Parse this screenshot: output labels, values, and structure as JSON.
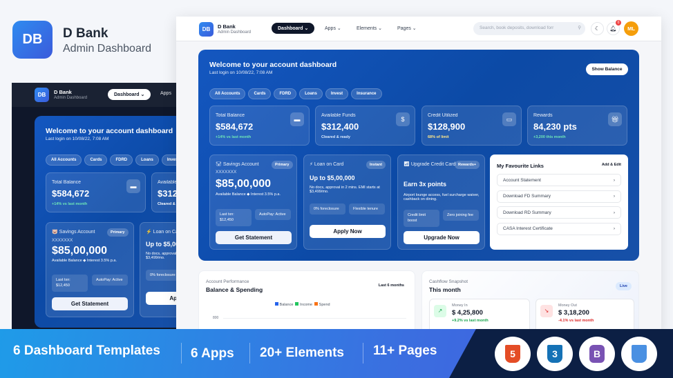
{
  "brand": {
    "logo": "DB",
    "name": "D Bank",
    "subtitle": "Admin Dashboard"
  },
  "header": {
    "logo": "DB",
    "name": "D Bank",
    "subtitle": "Admin Dashboard",
    "nav": [
      "Dashboard",
      "Apps",
      "Elements",
      "Pages"
    ],
    "search_placeholder": "Search, book deposits, download forr",
    "notification_count": "0",
    "avatar": "ML"
  },
  "hero": {
    "title": "Welcome to your account dashboard",
    "subtitle": "Last login on 10/08/22, 7:08 AM",
    "show_balance": "Show Balance",
    "chips": [
      "All Accounts",
      "Cards",
      "FDRD",
      "Loans",
      "Invest",
      "Insurance"
    ]
  },
  "stats": [
    {
      "label": "Total Balance",
      "value": "$584,672",
      "note": "+14% vs last month",
      "icon": "wallet-icon",
      "note_color": "#6ee7b7"
    },
    {
      "label": "Available Funds",
      "value": "$312,400",
      "note": "Cleared & ready",
      "icon": "money-bag-icon",
      "note_color": "#dbeafe"
    },
    {
      "label": "Credit Utilized",
      "value": "$128,900",
      "note": "68% of limit",
      "icon": "credit-card-icon",
      "note_color": "#fde68a"
    },
    {
      "label": "Rewards",
      "value": "84,230 pts",
      "note": "+3,200 this month",
      "icon": "gift-icon",
      "note_color": "#6ee7b7"
    }
  ],
  "savings": {
    "title": "Savings Account",
    "badge": "Primary",
    "number": "XXXXXXX",
    "amount": "$85,00,000",
    "desc": "Available Balance ◆ Interest 3.5% p.a.",
    "box1": "Last txn: $12,450",
    "box2": "AutoPay: Active",
    "button": "Get Statement"
  },
  "loan": {
    "title": "Loan on Card",
    "badge": "Instant",
    "amount": "Up to $5,00,000",
    "desc": "No docs, approval in 2 mins. EMI starts at $3,499/mo.",
    "box1": "0% foreclosure",
    "box2": "Flexible tenure",
    "button": "Apply Now"
  },
  "upgrade": {
    "title": "Upgrade Credit Card",
    "badge": "Rewards+",
    "amount": "Earn 3x points",
    "desc": "Airport lounge access, fuel surcharge waiver, cashback on dining.",
    "box1": "Credit limit boost",
    "box2": "Zero joining fee",
    "button": "Upgrade Now"
  },
  "favourites": {
    "title": "My Favourite Links",
    "action": "Add & Edit",
    "links": [
      "Account Statement",
      "Download FD Summary",
      "Download RD Summary",
      "CASA Interest Certificate"
    ]
  },
  "performance": {
    "label": "Account Performance",
    "title": "Balance & Spending",
    "range": "Last 6 months",
    "legend": [
      {
        "name": "Balance",
        "color": "#2563eb"
      },
      {
        "name": "Income",
        "color": "#22c55e"
      },
      {
        "name": "Spend",
        "color": "#f97316"
      }
    ],
    "y_tick": "800"
  },
  "cashflow": {
    "label": "Cashflow Snapshot",
    "title": "This month",
    "badge": "Live",
    "in": {
      "label": "Money In",
      "value": "$ 4,25,800",
      "note": "+9.2% vs last month"
    },
    "out": {
      "label": "Money Out",
      "value": "$ 3,18,200",
      "note": "-4.1% vs last month"
    }
  },
  "banner": {
    "items": [
      "6 Dashboard Templates",
      "6 Apps",
      "20+ Elements",
      "11+ Pages"
    ],
    "tech": [
      {
        "name": "HTML5",
        "label": "5",
        "color": "#e44d26"
      },
      {
        "name": "CSS3",
        "label": "3",
        "color": "#1572b6"
      },
      {
        "name": "Bootstrap",
        "label": "B",
        "color": "#7952b3"
      },
      {
        "name": "Flag",
        "label": "",
        "color": "#4a90e2"
      }
    ]
  }
}
